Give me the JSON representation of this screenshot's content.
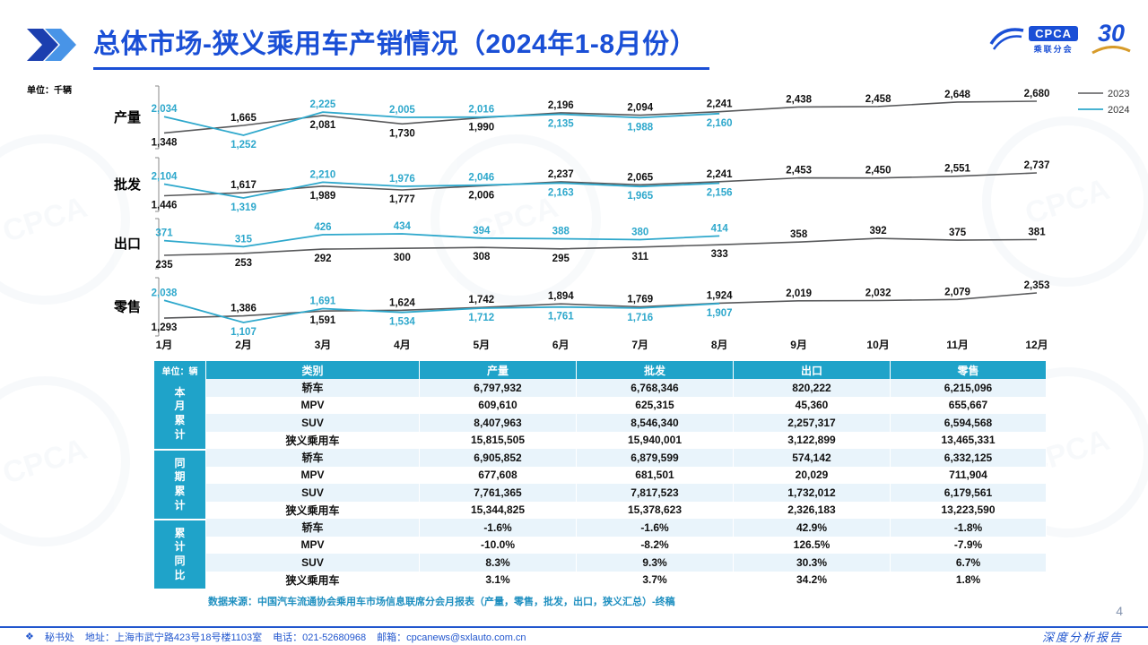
{
  "header": {
    "title": "总体市场-狭义乘用车产销情况（2024年1-8月份）",
    "logo_cpca": "CPCA",
    "logo_sub": "乘联分会",
    "logo_30": "30"
  },
  "chart_data": {
    "type": "line",
    "unit": "单位：千辆",
    "categories": [
      "1月",
      "2月",
      "3月",
      "4月",
      "5月",
      "6月",
      "7月",
      "8月",
      "9月",
      "10月",
      "11月",
      "12月"
    ],
    "legend": [
      "2023",
      "2024"
    ],
    "colors": {
      "2023": "#58595B",
      "2024": "#2EA8CC"
    },
    "legend_position": "right",
    "panels": [
      {
        "title": "产量",
        "series": [
          {
            "name": "2023",
            "values": [
              1348,
              1665,
              2081,
              1730,
              1990,
              2196,
              2094,
              2241,
              2438,
              2458,
              2648,
              2680
            ]
          },
          {
            "name": "2024",
            "values": [
              2034,
              1252,
              2225,
              2005,
              2016,
              2135,
              1988,
              2160
            ]
          }
        ]
      },
      {
        "title": "批发",
        "series": [
          {
            "name": "2023",
            "values": [
              1446,
              1617,
              1989,
              1777,
              2006,
              2237,
              2065,
              2241,
              2453,
              2450,
              2551,
              2737
            ]
          },
          {
            "name": "2024",
            "values": [
              2104,
              1319,
              2210,
              1976,
              2046,
              2163,
              1965,
              2156
            ]
          }
        ]
      },
      {
        "title": "出口",
        "series": [
          {
            "name": "2023",
            "values": [
              235,
              253,
              292,
              300,
              308,
              295,
              311,
              333,
              358,
              392,
              375,
              381
            ]
          },
          {
            "name": "2024",
            "values": [
              371,
              315,
              426,
              434,
              394,
              388,
              380,
              414
            ]
          }
        ]
      },
      {
        "title": "零售",
        "series": [
          {
            "name": "2023",
            "values": [
              1293,
              1386,
              1591,
              1624,
              1742,
              1894,
              1769,
              1924,
              2019,
              2032,
              2079,
              2353
            ]
          },
          {
            "name": "2024",
            "values": [
              2038,
              1107,
              1691,
              1534,
              1712,
              1761,
              1716,
              1907
            ]
          }
        ]
      }
    ]
  },
  "table": {
    "unit_label": "单位：辆",
    "columns": [
      "类别",
      "产量",
      "批发",
      "出口",
      "零售"
    ],
    "groups": [
      {
        "name": "本月累计",
        "rows": [
          {
            "cat": "轿车",
            "vals": [
              "6,797,932",
              "6,768,346",
              "820,222",
              "6,215,096"
            ]
          },
          {
            "cat": "MPV",
            "vals": [
              "609,610",
              "625,315",
              "45,360",
              "655,667"
            ]
          },
          {
            "cat": "SUV",
            "vals": [
              "8,407,963",
              "8,546,340",
              "2,257,317",
              "6,594,568"
            ]
          },
          {
            "cat": "狭义乘用车",
            "vals": [
              "15,815,505",
              "15,940,001",
              "3,122,899",
              "13,465,331"
            ]
          }
        ]
      },
      {
        "name": "同期累计",
        "rows": [
          {
            "cat": "轿车",
            "vals": [
              "6,905,852",
              "6,879,599",
              "574,142",
              "6,332,125"
            ]
          },
          {
            "cat": "MPV",
            "vals": [
              "677,608",
              "681,501",
              "20,029",
              "711,904"
            ]
          },
          {
            "cat": "SUV",
            "vals": [
              "7,761,365",
              "7,817,523",
              "1,732,012",
              "6,179,561"
            ]
          },
          {
            "cat": "狭义乘用车",
            "vals": [
              "15,344,825",
              "15,378,623",
              "2,326,183",
              "13,223,590"
            ]
          }
        ]
      },
      {
        "name": "累计同比",
        "rows": [
          {
            "cat": "轿车",
            "vals": [
              "-1.6%",
              "-1.6%",
              "42.9%",
              "-1.8%"
            ]
          },
          {
            "cat": "MPV",
            "vals": [
              "-10.0%",
              "-8.2%",
              "126.5%",
              "-7.9%"
            ]
          },
          {
            "cat": "SUV",
            "vals": [
              "8.3%",
              "9.3%",
              "30.3%",
              "6.7%"
            ]
          },
          {
            "cat": "狭义乘用车",
            "vals": [
              "3.1%",
              "3.7%",
              "34.2%",
              "1.8%"
            ]
          }
        ]
      }
    ],
    "source": "数据来源：中国汽车流通协会乘用车市场信息联席分会月报表（产量，零售，批发，出口，狭义汇总）-终稿"
  },
  "footer": {
    "page_number": "4",
    "secretariat": "秘书处",
    "address": "地址：上海市武宁路423号18号楼1103室",
    "phone": "电话：021-52680968",
    "email": "邮箱：cpcanews@sxlauto.com.cn",
    "right": "深度分析报告"
  },
  "watermark_text": "CPCA"
}
